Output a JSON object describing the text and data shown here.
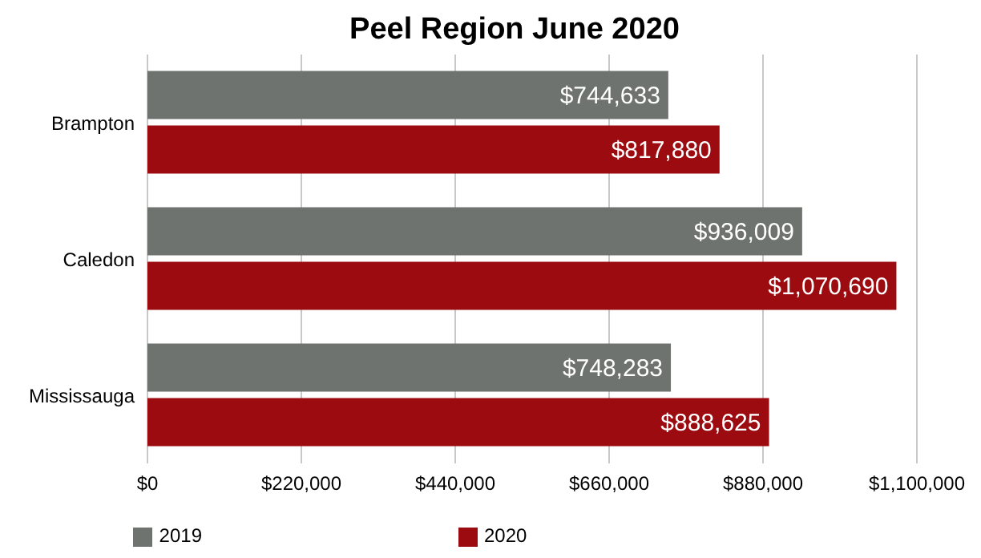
{
  "chart_data": {
    "type": "bar",
    "orientation": "horizontal",
    "title": "Peel Region June 2020",
    "categories": [
      "Brampton",
      "Caledon",
      "Mississauga"
    ],
    "series": [
      {
        "name": "2019",
        "color": "#6f7370",
        "values": [
          744633,
          936009,
          748283
        ],
        "value_labels": [
          "$744,633",
          "$936,009",
          "$748,283"
        ]
      },
      {
        "name": "2020",
        "color": "#9b0b10",
        "values": [
          817880,
          1070690,
          888625
        ],
        "value_labels": [
          "$817,880",
          "$1,070,690",
          "$888,625"
        ]
      }
    ],
    "xlim": [
      0,
      1100000
    ],
    "xticks": [
      {
        "value": 0,
        "label": "$0"
      },
      {
        "value": 220000,
        "label": "$220,000"
      },
      {
        "value": 440000,
        "label": "$440,000"
      },
      {
        "value": 660000,
        "label": "$660,000"
      },
      {
        "value": 880000,
        "label": "$880,000"
      },
      {
        "value": 1100000,
        "label": "$1,100,000"
      }
    ],
    "grid": "x",
    "legend": "bottom"
  }
}
